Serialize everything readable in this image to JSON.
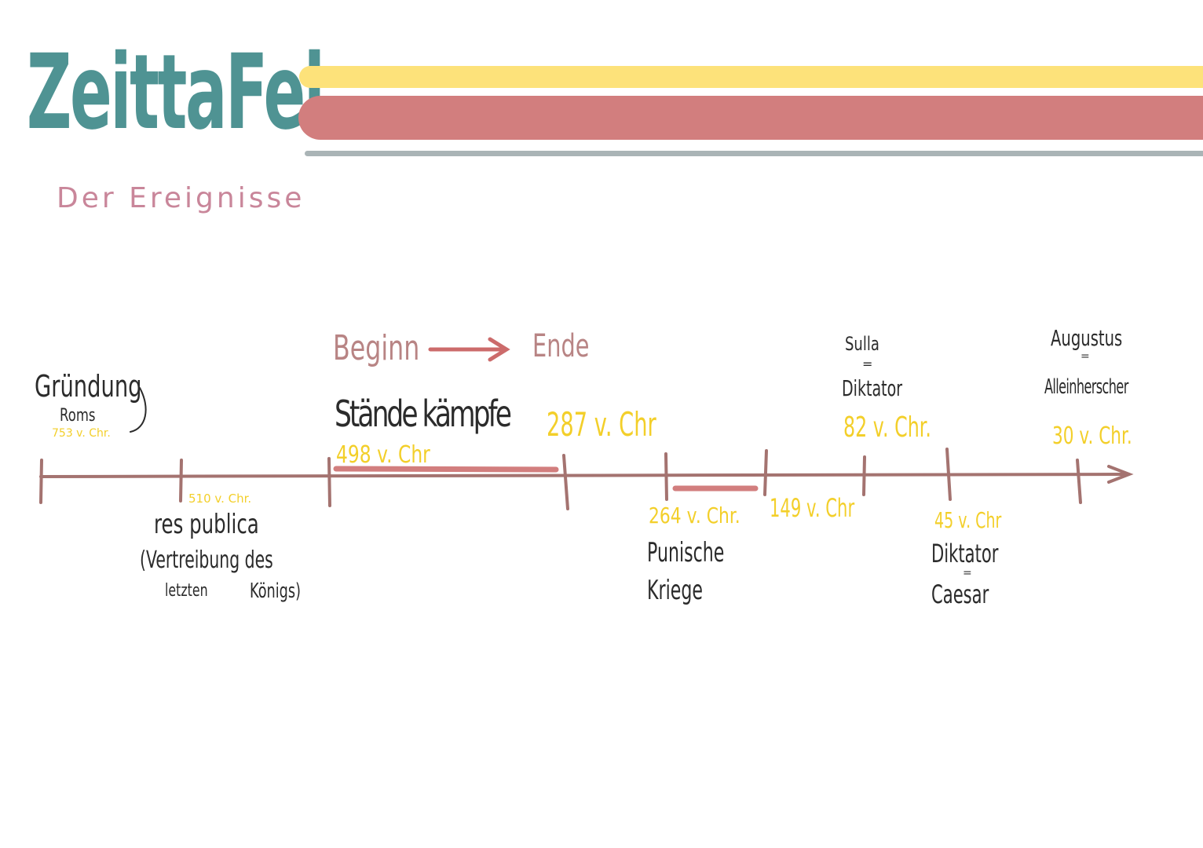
{
  "header": {
    "title": "ZeittaFel",
    "subtitle": "Der Ereignisse"
  },
  "colors": {
    "title": "#4f9393",
    "subtitle": "#c9869a",
    "band_yellow": "#fde27a",
    "band_red": "#d27e7e",
    "band_gray": "#aab4b6",
    "axis": "#a47370",
    "highlight": "#d27e7e",
    "date": "#f3cf2a",
    "text": "#2b2b2b",
    "legend": "#b88484"
  },
  "legend": {
    "begin": "Beginn",
    "end": "Ende"
  },
  "events": {
    "gruendung": {
      "title": "Gründung",
      "sub": "Roms",
      "date": "753 v. Chr."
    },
    "res_publica": {
      "date": "510 v. Chr.",
      "line1": "res publica",
      "line2": "(Vertreibung des",
      "line3a": "letzten",
      "line3b": "Königs)"
    },
    "staende": {
      "title": "Stände kämpfe",
      "start": "498 v. Chr",
      "end": "287 v. Chr"
    },
    "punische": {
      "start": "264 v. Chr.",
      "end": "149 v. Chr",
      "line1": "Punische",
      "line2": "Kriege"
    },
    "sulla": {
      "line1": "Sulla",
      "eq": "=",
      "line2": "Diktator",
      "date": "82 v. Chr."
    },
    "caesar": {
      "date": "45 v. Chr",
      "line1": "Diktator",
      "eq": "=",
      "line2": "Caesar"
    },
    "augustus": {
      "line1": "Augustus",
      "eq": "=",
      "line2": "Alleinherscher",
      "date": "30 v. Chr."
    }
  }
}
